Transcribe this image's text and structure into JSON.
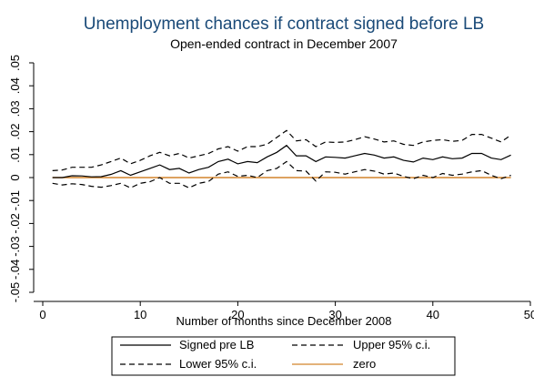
{
  "chart_data": {
    "type": "line",
    "title": "Unemployment chances if contract signed before LB",
    "subtitle": "Open-ended contract in December 2007",
    "xlabel": "Number of months since December 2008",
    "ylabel": "",
    "xlim": [
      0,
      50
    ],
    "ylim": [
      -0.05,
      0.05
    ],
    "xticks": [
      0,
      10,
      20,
      30,
      40,
      50
    ],
    "xtick_labels": [
      "0",
      "10",
      "20",
      "30",
      "40",
      "50"
    ],
    "yticks": [
      -0.05,
      -0.04,
      -0.03,
      -0.02,
      -0.01,
      0,
      0.01,
      0.02,
      0.03,
      0.04,
      0.05
    ],
    "ytick_labels": [
      "-.05",
      "-.04",
      "-.03",
      "-.02",
      "-.01",
      "0",
      ".01",
      ".02",
      ".03",
      ".04",
      ".05"
    ],
    "grid": false,
    "legend_position": "bottom",
    "x": [
      1,
      2,
      3,
      4,
      5,
      6,
      7,
      8,
      9,
      10,
      11,
      12,
      13,
      14,
      15,
      16,
      17,
      18,
      19,
      20,
      21,
      22,
      23,
      24,
      25,
      26,
      27,
      28,
      29,
      30,
      31,
      32,
      33,
      34,
      35,
      36,
      37,
      38,
      39,
      40,
      41,
      42,
      43,
      44,
      45,
      46,
      47,
      48
    ],
    "series": [
      {
        "name": "Signed pre LB",
        "style": "solid",
        "color": "#000000",
        "values": [
          0,
          0,
          0.0008,
          0.0007,
          0.0003,
          0.0004,
          0.0014,
          0.003,
          0.001,
          0.0025,
          0.004,
          0.0055,
          0.0035,
          0.004,
          0.002,
          0.0035,
          0.0045,
          0.007,
          0.008,
          0.006,
          0.007,
          0.0065,
          0.009,
          0.011,
          0.014,
          0.0095,
          0.0095,
          0.007,
          0.009,
          0.0088,
          0.0085,
          0.0095,
          0.0105,
          0.0098,
          0.0085,
          0.009,
          0.0075,
          0.0068,
          0.0085,
          0.0078,
          0.009,
          0.0082,
          0.0085,
          0.0105,
          0.0105,
          0.0085,
          0.0078,
          0.0098
        ]
      },
      {
        "name": "Upper 95% c.i.",
        "style": "dashed",
        "color": "#000000",
        "values": [
          0.003,
          0.0033,
          0.0045,
          0.0045,
          0.0045,
          0.0055,
          0.007,
          0.0085,
          0.006,
          0.0075,
          0.0095,
          0.011,
          0.0095,
          0.0105,
          0.0085,
          0.0095,
          0.0105,
          0.0125,
          0.0135,
          0.0115,
          0.0135,
          0.0135,
          0.0145,
          0.0175,
          0.0205,
          0.016,
          0.0165,
          0.0135,
          0.0155,
          0.0153,
          0.0155,
          0.0165,
          0.0178,
          0.0168,
          0.0155,
          0.016,
          0.0145,
          0.014,
          0.0155,
          0.0162,
          0.0165,
          0.0158,
          0.0162,
          0.0188,
          0.0188,
          0.0172,
          0.0155,
          0.0185
        ]
      },
      {
        "name": "Lower 95% c.i.",
        "style": "dashed",
        "color": "#000000",
        "values": [
          -0.0025,
          -0.0032,
          -0.0027,
          -0.003,
          -0.0038,
          -0.0042,
          -0.0035,
          -0.0025,
          -0.0045,
          -0.0025,
          -0.0018,
          0,
          -0.0025,
          -0.0025,
          -0.0045,
          -0.0025,
          -0.0017,
          0.0015,
          0.0025,
          0.0005,
          0.001,
          0,
          0.003,
          0.004,
          0.007,
          0.003,
          0.0028,
          -0.0015,
          0.0025,
          0.0023,
          0.0015,
          0.0025,
          0.0035,
          0.0028,
          0.0015,
          0.002,
          0.0005,
          -0.0005,
          0.001,
          0,
          0.0018,
          0.001,
          0.0015,
          0.0025,
          0.003,
          0.001,
          -0.0005,
          0.001
        ]
      },
      {
        "name": "zero",
        "style": "solid",
        "color": "#d2832b",
        "values": [
          0,
          0,
          0,
          0,
          0,
          0,
          0,
          0,
          0,
          0,
          0,
          0,
          0,
          0,
          0,
          0,
          0,
          0,
          0,
          0,
          0,
          0,
          0,
          0,
          0,
          0,
          0,
          0,
          0,
          0,
          0,
          0,
          0,
          0,
          0,
          0,
          0,
          0,
          0,
          0,
          0,
          0,
          0,
          0,
          0,
          0,
          0,
          0
        ]
      }
    ]
  }
}
